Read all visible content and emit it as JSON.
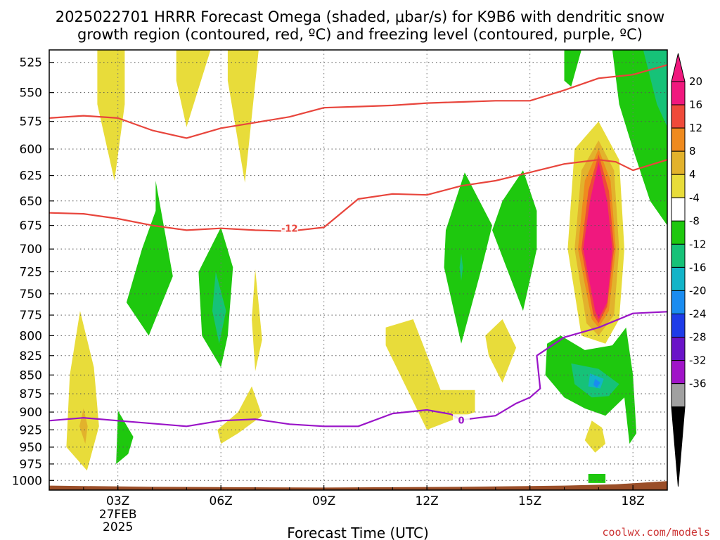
{
  "title_lines": [
    "2025022701 HRRR Forecast Omega (shaded, μbar/s) for K9B6 with dendritic snow",
    "growth region (contoured, red, ºC) and freezing level (contoured, purple, ºC)"
  ],
  "credit": "coolwx.com/models",
  "chart_data": {
    "type": "contour",
    "xlabel": "Forecast Time (UTC)",
    "ylabel": "",
    "x_unit": "forecast hour",
    "xlim": [
      1,
      19
    ],
    "ylim": [
      1015,
      515
    ],
    "y_scale": "log-pressure",
    "grid": true,
    "x_ticks": [
      {
        "hour": 3,
        "label": "03Z",
        "sub": [
          "27FEB",
          "2025"
        ]
      },
      {
        "hour": 6,
        "label": "06Z",
        "sub": []
      },
      {
        "hour": 9,
        "label": "09Z",
        "sub": []
      },
      {
        "hour": 12,
        "label": "12Z",
        "sub": []
      },
      {
        "hour": 15,
        "label": "15Z",
        "sub": []
      },
      {
        "hour": 18,
        "label": "18Z",
        "sub": []
      }
    ],
    "y_ticks": [
      525,
      550,
      575,
      600,
      625,
      650,
      675,
      700,
      725,
      750,
      775,
      800,
      825,
      850,
      875,
      900,
      925,
      950,
      975,
      1000
    ],
    "colorbar": {
      "levels": [
        "20",
        "16",
        "12",
        "8",
        "4",
        "-4",
        "-8",
        "-12",
        "-16",
        "-20",
        "-24",
        "-28",
        "-32",
        "-36"
      ],
      "colors": [
        "#f0187e",
        "#ef4a3a",
        "#ef8a1e",
        "#e2b22c",
        "#e8dc3a",
        "#ffffff",
        "#1ec80e",
        "#16c278",
        "#12b4c8",
        "#1a8cf0",
        "#1e3ce8",
        "#6a14c8",
        "#a014c8",
        "#a0a0a0"
      ],
      "top_arrow_color": "#f0187e",
      "bottom_arrow_color": "#000000"
    },
    "shaded_regions": [
      {
        "level": "4",
        "color": "#e8dc3a",
        "points": [
          [
            2.4,
            515
          ],
          [
            3.2,
            515
          ],
          [
            3.2,
            560
          ],
          [
            2.9,
            630
          ],
          [
            2.4,
            560
          ]
        ]
      },
      {
        "level": "4",
        "color": "#e8dc3a",
        "points": [
          [
            4.7,
            515
          ],
          [
            5.7,
            515
          ],
          [
            5.0,
            580
          ],
          [
            4.7,
            540
          ]
        ]
      },
      {
        "level": "4",
        "color": "#e8dc3a",
        "points": [
          [
            6.2,
            515
          ],
          [
            7.1,
            515
          ],
          [
            6.7,
            632
          ],
          [
            6.2,
            540
          ]
        ]
      },
      {
        "level": "4",
        "color": "#e8dc3a",
        "points": [
          [
            1.9,
            770
          ],
          [
            2.3,
            840
          ],
          [
            2.45,
            920
          ],
          [
            2.1,
            985
          ],
          [
            1.5,
            950
          ],
          [
            1.6,
            850
          ]
        ]
      },
      {
        "level": "8",
        "color": "#e2b22c",
        "points": [
          [
            2.0,
            895
          ],
          [
            2.12,
            920
          ],
          [
            2.05,
            945
          ],
          [
            1.88,
            920
          ]
        ]
      },
      {
        "level": "-8",
        "color": "#1ec80e",
        "points": [
          [
            3.0,
            898
          ],
          [
            3.45,
            935
          ],
          [
            3.3,
            960
          ],
          [
            2.95,
            975
          ]
        ]
      },
      {
        "level": "-8",
        "color": "#1ec80e",
        "points": [
          [
            4.1,
            630
          ],
          [
            4.6,
            730
          ],
          [
            3.9,
            800
          ],
          [
            3.25,
            760
          ],
          [
            3.7,
            700
          ],
          [
            4.1,
            660
          ]
        ]
      },
      {
        "level": "-8",
        "color": "#1ec80e",
        "points": [
          [
            6.0,
            677
          ],
          [
            6.35,
            720
          ],
          [
            6.2,
            800
          ],
          [
            6.0,
            840
          ],
          [
            5.45,
            800
          ],
          [
            5.35,
            725
          ]
        ]
      },
      {
        "level": "-12",
        "color": "#16c278",
        "points": [
          [
            5.85,
            725
          ],
          [
            6.15,
            770
          ],
          [
            5.95,
            810
          ],
          [
            5.75,
            770
          ]
        ]
      },
      {
        "level": "4",
        "color": "#e8dc3a",
        "points": [
          [
            7.0,
            722
          ],
          [
            7.2,
            805
          ],
          [
            7.0,
            845
          ],
          [
            6.9,
            780
          ]
        ]
      },
      {
        "level": "4",
        "color": "#e8dc3a",
        "points": [
          [
            6.9,
            865
          ],
          [
            7.2,
            905
          ],
          [
            6.5,
            930
          ],
          [
            6.0,
            945
          ],
          [
            5.9,
            925
          ],
          [
            6.5,
            900
          ]
        ]
      },
      {
        "level": "4",
        "color": "#e8dc3a",
        "points": [
          [
            10.8,
            790
          ],
          [
            11.6,
            780
          ],
          [
            12.4,
            870
          ],
          [
            13.4,
            870
          ],
          [
            13.4,
            900
          ],
          [
            12.8,
            910
          ],
          [
            12.0,
            925
          ],
          [
            10.8,
            812
          ]
        ]
      },
      {
        "level": "-8",
        "color": "#1ec80e",
        "points": [
          [
            13.1,
            622
          ],
          [
            13.9,
            675
          ],
          [
            13.6,
            720
          ],
          [
            13.0,
            810
          ],
          [
            12.5,
            720
          ],
          [
            12.55,
            680
          ]
        ]
      },
      {
        "level": "-12",
        "color": "#16c278",
        "points": [
          [
            13.0,
            705
          ],
          [
            13.05,
            720
          ],
          [
            13.0,
            735
          ],
          [
            12.95,
            720
          ]
        ]
      },
      {
        "level": "-8",
        "color": "#1ec80e",
        "points": [
          [
            14.8,
            620
          ],
          [
            15.2,
            660
          ],
          [
            15.2,
            700
          ],
          [
            14.8,
            770
          ],
          [
            13.9,
            680
          ],
          [
            14.2,
            650
          ]
        ]
      },
      {
        "level": "4",
        "color": "#e8dc3a",
        "points": [
          [
            14.2,
            780
          ],
          [
            14.6,
            815
          ],
          [
            14.2,
            860
          ],
          [
            13.8,
            825
          ],
          [
            13.7,
            800
          ]
        ]
      },
      {
        "level": "-8",
        "color": "#1ec80e",
        "points": [
          [
            16.0,
            515
          ],
          [
            16.5,
            515
          ],
          [
            16.2,
            545
          ],
          [
            16.0,
            540
          ]
        ]
      },
      {
        "level": "-8",
        "color": "#1ec80e",
        "points": [
          [
            17.4,
            515
          ],
          [
            18.7,
            515
          ],
          [
            19.0,
            560
          ],
          [
            19.0,
            675
          ],
          [
            18.5,
            650
          ],
          [
            18.0,
            600
          ],
          [
            17.6,
            560
          ]
        ]
      },
      {
        "level": "-12",
        "color": "#16c278",
        "points": [
          [
            18.3,
            515
          ],
          [
            19.0,
            515
          ],
          [
            19.0,
            580
          ],
          [
            18.7,
            560
          ]
        ]
      },
      {
        "level": "4",
        "color": "#e8dc3a",
        "points": [
          [
            17.0,
            575
          ],
          [
            17.6,
            610
          ],
          [
            17.75,
            700
          ],
          [
            17.6,
            780
          ],
          [
            17.2,
            810
          ],
          [
            16.5,
            800
          ],
          [
            16.1,
            700
          ],
          [
            16.3,
            600
          ]
        ]
      },
      {
        "level": "8",
        "color": "#e2b22c",
        "points": [
          [
            17.0,
            592
          ],
          [
            17.45,
            620
          ],
          [
            17.6,
            700
          ],
          [
            17.45,
            775
          ],
          [
            17.0,
            800
          ],
          [
            16.65,
            785
          ],
          [
            16.3,
            700
          ],
          [
            16.5,
            620
          ]
        ]
      },
      {
        "level": "12",
        "color": "#ef8a1e",
        "points": [
          [
            17.0,
            600
          ],
          [
            17.35,
            630
          ],
          [
            17.5,
            700
          ],
          [
            17.3,
            770
          ],
          [
            17.0,
            790
          ],
          [
            16.8,
            780
          ],
          [
            16.4,
            700
          ],
          [
            16.6,
            630
          ]
        ]
      },
      {
        "level": "16",
        "color": "#ef4a3a",
        "points": [
          [
            17.0,
            605
          ],
          [
            17.3,
            640
          ],
          [
            17.45,
            700
          ],
          [
            17.25,
            765
          ],
          [
            17.0,
            785
          ],
          [
            16.85,
            775
          ],
          [
            16.5,
            700
          ],
          [
            16.7,
            640
          ]
        ]
      },
      {
        "level": "20",
        "color": "#f0187e",
        "points": [
          [
            17.0,
            612
          ],
          [
            17.25,
            650
          ],
          [
            17.4,
            700
          ],
          [
            17.25,
            760
          ],
          [
            17.0,
            780
          ],
          [
            16.9,
            770
          ],
          [
            16.55,
            700
          ],
          [
            16.75,
            650
          ]
        ]
      },
      {
        "level": "-8",
        "color": "#1ec80e",
        "points": [
          [
            15.9,
            800
          ],
          [
            16.6,
            818
          ],
          [
            17.4,
            812
          ],
          [
            17.8,
            790
          ],
          [
            18.0,
            850
          ],
          [
            18.1,
            930
          ],
          [
            17.9,
            945
          ],
          [
            17.75,
            880
          ],
          [
            17.2,
            905
          ],
          [
            16.6,
            895
          ],
          [
            16.0,
            880
          ],
          [
            15.45,
            850
          ],
          [
            15.5,
            810
          ]
        ]
      },
      {
        "level": "-12",
        "color": "#16c278",
        "points": [
          [
            16.2,
            835
          ],
          [
            17.0,
            842
          ],
          [
            17.6,
            862
          ],
          [
            17.3,
            878
          ],
          [
            16.8,
            880
          ],
          [
            16.3,
            862
          ]
        ]
      },
      {
        "level": "-16",
        "color": "#12b4c8",
        "points": [
          [
            16.75,
            848
          ],
          [
            17.15,
            855
          ],
          [
            17.05,
            868
          ],
          [
            16.7,
            865
          ]
        ]
      },
      {
        "level": "-20",
        "color": "#1a8cf0",
        "points": [
          [
            16.9,
            855
          ],
          [
            17.05,
            860
          ],
          [
            16.95,
            867
          ],
          [
            16.85,
            863
          ]
        ]
      },
      {
        "level": "4",
        "color": "#e8dc3a",
        "points": [
          [
            16.8,
            912
          ],
          [
            17.1,
            922
          ],
          [
            17.2,
            945
          ],
          [
            16.9,
            958
          ],
          [
            16.6,
            940
          ]
        ]
      },
      {
        "level": "-8",
        "color": "#1ec80e",
        "points": [
          [
            16.7,
            990
          ],
          [
            17.2,
            990
          ],
          [
            17.2,
            1004
          ],
          [
            16.7,
            1004
          ]
        ]
      }
    ],
    "contours": [
      {
        "name": "dendritic growth region top",
        "color": "#e8453c",
        "points": [
          [
            1,
            572
          ],
          [
            2,
            570
          ],
          [
            3,
            572
          ],
          [
            4,
            583
          ],
          [
            5,
            590
          ],
          [
            6,
            581
          ],
          [
            7,
            576
          ],
          [
            8,
            571
          ],
          [
            9,
            563
          ],
          [
            10,
            562
          ],
          [
            11,
            561
          ],
          [
            12,
            559
          ],
          [
            13,
            558
          ],
          [
            14,
            557
          ],
          [
            15,
            557
          ],
          [
            16,
            548
          ],
          [
            17,
            538
          ],
          [
            18,
            535
          ],
          [
            19,
            527
          ]
        ]
      },
      {
        "name": "-12",
        "label": "-12",
        "label_at": [
          8.0,
          678
        ],
        "color": "#e8453c",
        "points": [
          [
            1,
            662
          ],
          [
            2,
            663
          ],
          [
            3,
            668
          ],
          [
            4,
            675
          ],
          [
            5,
            680
          ],
          [
            6,
            678
          ],
          [
            7,
            680
          ],
          [
            8,
            681
          ],
          [
            9,
            677
          ],
          [
            10,
            648
          ],
          [
            11,
            643
          ],
          [
            12,
            644
          ],
          [
            13,
            635
          ],
          [
            14,
            630
          ],
          [
            15,
            622
          ],
          [
            16,
            614
          ],
          [
            17,
            610
          ],
          [
            17.5,
            612
          ],
          [
            18,
            620
          ],
          [
            19,
            610
          ]
        ]
      },
      {
        "name": "0",
        "label": "0",
        "label_at": [
          13.0,
          911
        ],
        "color": "#9a14c8",
        "points": [
          [
            1,
            912
          ],
          [
            2,
            908
          ],
          [
            3,
            912
          ],
          [
            4,
            916
          ],
          [
            5,
            920
          ],
          [
            6,
            912
          ],
          [
            7,
            910
          ],
          [
            8,
            917
          ],
          [
            9,
            920
          ],
          [
            10,
            920
          ],
          [
            11,
            902
          ],
          [
            12,
            897
          ],
          [
            12.7,
            903
          ],
          [
            13.0,
            911
          ],
          [
            13.5,
            908
          ],
          [
            14,
            905
          ],
          [
            14.6,
            888
          ],
          [
            15,
            880
          ],
          [
            15.3,
            868
          ],
          [
            15.2,
            825
          ],
          [
            16,
            802
          ],
          [
            17,
            790
          ],
          [
            18,
            773
          ],
          [
            19,
            771
          ]
        ]
      }
    ],
    "terrain": {
      "color": "#9a4e28",
      "points": [
        [
          1,
          1008
        ],
        [
          4,
          1010
        ],
        [
          9,
          1011
        ],
        [
          13,
          1010
        ],
        [
          16,
          1008
        ],
        [
          17.5,
          1006
        ],
        [
          19,
          1001
        ]
      ]
    }
  }
}
